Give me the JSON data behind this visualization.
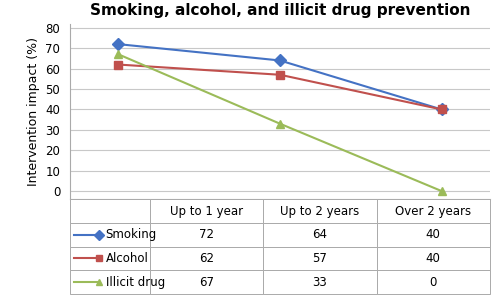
{
  "title": "Smoking, alcohol, and illicit drug prevention",
  "categories": [
    "Up to 1 year",
    "Up to 2 years",
    "Over 2 years"
  ],
  "series": [
    {
      "label": "Smoking",
      "values": [
        72,
        64,
        40
      ],
      "color": "#4472C4",
      "marker": "D"
    },
    {
      "label": "Alcohol",
      "values": [
        62,
        57,
        40
      ],
      "color": "#C0504D",
      "marker": "s"
    },
    {
      "label": "Illicit drug",
      "values": [
        67,
        33,
        0
      ],
      "color": "#9BBB59",
      "marker": "^"
    }
  ],
  "ylabel": "Intervention impact (%)",
  "ylim": [
    -4,
    82
  ],
  "yticks": [
    0,
    10,
    20,
    30,
    40,
    50,
    60,
    70,
    80
  ],
  "background_color": "#FFFFFF",
  "plot_bg_color": "#FFFFFF",
  "grid_color": "#C8C8C8",
  "table_data": [
    [
      "",
      "Up to 1 year",
      "Up to 2 years",
      "Over 2 years"
    ],
    [
      "Smoking",
      "72",
      "64",
      "40"
    ],
    [
      "Alcohol",
      "62",
      "57",
      "40"
    ],
    [
      "Illicit drug",
      "67",
      "33",
      "0"
    ]
  ],
  "title_fontsize": 11,
  "axis_fontsize": 9,
  "tick_fontsize": 8.5,
  "table_fontsize": 8.5
}
